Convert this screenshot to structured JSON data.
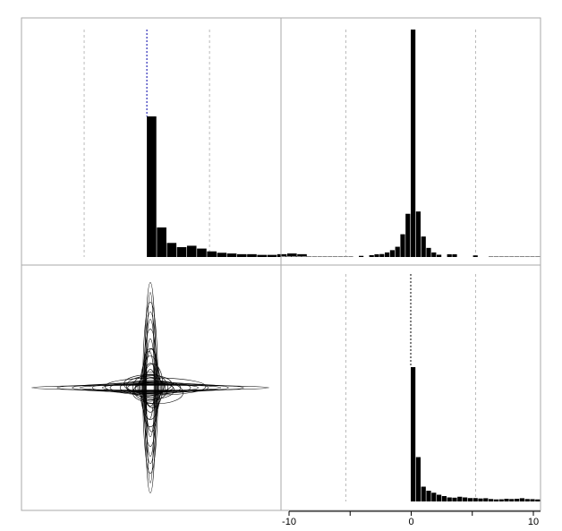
{
  "chart_data": {
    "type": "pairs-plot",
    "grid": "2x2",
    "colors": {
      "bars": "#000000",
      "panel_border": "#aaaaaa",
      "grid_line": "#bbbbbb",
      "marker_line_top": "#0000aa",
      "marker_line_bottom": "#000000",
      "ellipse_stroke": "#000000"
    },
    "x_axis": {
      "range": [
        -10,
        10
      ],
      "ticks": [
        -10,
        -5,
        0,
        5,
        10
      ],
      "tick_labels": [
        "-10",
        "0",
        "10"
      ],
      "tick_label_values": [
        -10,
        0,
        10
      ]
    },
    "panels": [
      {
        "id": "top-left",
        "type": "histogram",
        "xlim": [
          -5,
          5
        ],
        "reference_lines": [
          -2.5,
          2.5
        ],
        "marker_line": 0,
        "bin_width": 0.4,
        "bins_start": 0,
        "values": [
          1.0,
          0.21,
          0.1,
          0.07,
          0.08,
          0.06,
          0.04,
          0.03,
          0.025,
          0.02,
          0.02,
          0.015,
          0.015,
          0.02,
          0.025,
          0.02
        ]
      },
      {
        "id": "top-right",
        "type": "histogram",
        "xlim": [
          -10,
          10
        ],
        "reference_lines": [
          -5,
          5
        ],
        "bin_width": 0.4,
        "bins": [
          {
            "x": -10.8,
            "v": 0.002
          },
          {
            "x": -10.4,
            "v": 0.002
          },
          {
            "x": -10.0,
            "v": 0.002
          },
          {
            "x": -9.6,
            "v": 0.002
          },
          {
            "x": -9.2,
            "v": 0.002
          },
          {
            "x": -8.8,
            "v": 0.002
          },
          {
            "x": -8.4,
            "v": 0.002
          },
          {
            "x": -8.0,
            "v": 0.002
          },
          {
            "x": -7.6,
            "v": 0.002
          },
          {
            "x": -7.2,
            "v": 0.002
          },
          {
            "x": -6.8,
            "v": 0.002
          },
          {
            "x": -6.4,
            "v": 0.002
          },
          {
            "x": -6.0,
            "v": 0.002
          },
          {
            "x": -5.6,
            "v": 0.002
          },
          {
            "x": -5.2,
            "v": 0.002
          },
          {
            "x": -4.8,
            "v": 0.002
          },
          {
            "x": -4.0,
            "v": 0.005
          },
          {
            "x": -3.2,
            "v": 0.008
          },
          {
            "x": -2.8,
            "v": 0.012
          },
          {
            "x": -2.4,
            "v": 0.013
          },
          {
            "x": -2.0,
            "v": 0.02
          },
          {
            "x": -1.6,
            "v": 0.03
          },
          {
            "x": -1.2,
            "v": 0.045
          },
          {
            "x": -0.8,
            "v": 0.1
          },
          {
            "x": -0.4,
            "v": 0.19
          },
          {
            "x": 0.0,
            "v": 1.0
          },
          {
            "x": 0.4,
            "v": 0.2
          },
          {
            "x": 0.8,
            "v": 0.09
          },
          {
            "x": 1.2,
            "v": 0.04
          },
          {
            "x": 1.6,
            "v": 0.02
          },
          {
            "x": 2.0,
            "v": 0.01
          },
          {
            "x": 2.8,
            "v": 0.012
          },
          {
            "x": 3.2,
            "v": 0.012
          },
          {
            "x": 4.8,
            "v": 0.007
          },
          {
            "x": 6.0,
            "v": 0.002
          },
          {
            "x": 6.4,
            "v": 0.002
          },
          {
            "x": 6.8,
            "v": 0.002
          },
          {
            "x": 7.2,
            "v": 0.002
          },
          {
            "x": 7.6,
            "v": 0.002
          },
          {
            "x": 8.0,
            "v": 0.002
          },
          {
            "x": 8.4,
            "v": 0.002
          },
          {
            "x": 8.8,
            "v": 0.002
          },
          {
            "x": 9.2,
            "v": 0.002
          },
          {
            "x": 9.6,
            "v": 0.002
          },
          {
            "x": 10.0,
            "v": 0.002
          },
          {
            "x": 10.4,
            "v": 0.002
          }
        ]
      },
      {
        "id": "bottom-left",
        "type": "ellipses",
        "center": [
          0,
          0
        ],
        "ellipses": [
          {
            "rx": 0.22,
            "ry": 4.3
          },
          {
            "rx": 0.15,
            "ry": 3.9
          },
          {
            "rx": 0.3,
            "ry": 3.5
          },
          {
            "rx": 0.25,
            "ry": 3.1
          },
          {
            "rx": 0.2,
            "ry": 2.8
          },
          {
            "rx": 0.28,
            "ry": 2.4
          },
          {
            "rx": 0.18,
            "ry": 2.0
          },
          {
            "rx": 0.35,
            "ry": 1.6
          },
          {
            "rx": 0.4,
            "ry": 1.3
          },
          {
            "rx": 0.3,
            "ry": 1.0
          },
          {
            "rx": 0.22,
            "ry": 0.75
          },
          {
            "rx": 4.7,
            "ry": 0.1
          },
          {
            "rx": 3.7,
            "ry": 0.14
          },
          {
            "rx": 3.1,
            "ry": 0.18
          },
          {
            "rx": 2.8,
            "ry": 0.12
          },
          {
            "rx": 2.3,
            "ry": 0.22
          },
          {
            "rx": 1.9,
            "ry": 0.16
          },
          {
            "rx": 1.6,
            "ry": 0.25
          },
          {
            "rx": 1.2,
            "ry": 0.3
          },
          {
            "rx": 0.9,
            "ry": 0.2
          },
          {
            "rx": 0.7,
            "ry": 0.55
          },
          {
            "rx": 0.6,
            "ry": 0.3
          },
          {
            "rx": 0.5,
            "ry": 0.5
          },
          {
            "rx": 0.45,
            "ry": 0.65
          },
          {
            "rx": 0.35,
            "ry": 0.4
          },
          {
            "rx": 0.8,
            "ry": 0.35,
            "dx": 0.15,
            "dy": -0.1
          },
          {
            "rx": 0.75,
            "ry": 0.4,
            "dx": -0.2,
            "dy": 0.05
          },
          {
            "rx": 1.0,
            "ry": 0.45,
            "dx": 0.3,
            "dy": -0.2
          },
          {
            "rx": 0.95,
            "ry": 0.38,
            "dx": -0.1,
            "dy": 0.15
          },
          {
            "rx": 2.0,
            "ry": 0.35,
            "dx": 0.2,
            "dy": 0.05
          },
          {
            "rx": 0.2,
            "ry": 1.4,
            "dx": -0.05,
            "dy": 0.1
          },
          {
            "rx": 0.25,
            "ry": 1.7,
            "dx": 0.05,
            "dy": -0.1
          },
          {
            "rx": 0.4,
            "ry": 0.9,
            "dx": 0.1,
            "dy": 0.08
          }
        ]
      },
      {
        "id": "bottom-right",
        "type": "histogram",
        "xlim": [
          -10,
          10
        ],
        "reference_lines": [
          -5,
          5
        ],
        "marker_line": 0,
        "bin_width": 0.4,
        "bins_start": 0,
        "values": [
          1.0,
          0.33,
          0.11,
          0.08,
          0.065,
          0.05,
          0.04,
          0.03,
          0.028,
          0.035,
          0.03,
          0.025,
          0.025,
          0.022,
          0.024,
          0.018,
          0.015,
          0.016,
          0.02,
          0.018,
          0.02,
          0.024,
          0.018,
          0.017,
          0.015,
          0.01,
          0.012
        ]
      }
    ]
  }
}
